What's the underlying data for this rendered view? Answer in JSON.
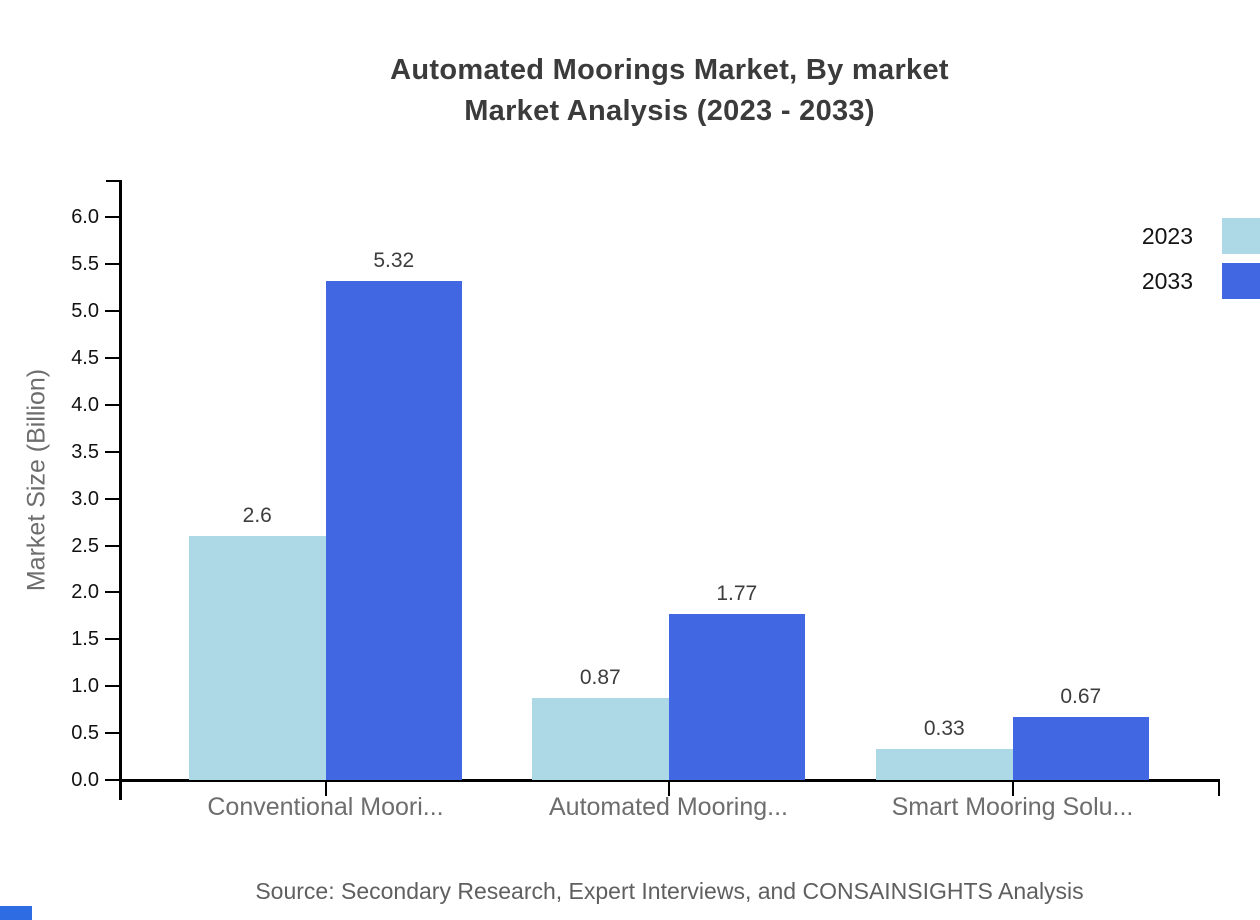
{
  "title": {
    "line1": "Automated Moorings Market, By market",
    "line2": "Market Analysis (2023 - 2033)"
  },
  "source_note": "Source: Secondary Research, Expert Interviews, and CONSAINSIGHTS Analysis",
  "chart_data": {
    "type": "bar",
    "title": "Automated Moorings Market, By market Market Analysis (2023 - 2033)",
    "categories": [
      "Conventional Moori...",
      "Automated Mooring...",
      "Smart Mooring Solu..."
    ],
    "series": [
      {
        "name": "2023",
        "color": "#add8e6",
        "values": [
          2.6,
          0.87,
          0.33
        ],
        "value_labels": [
          "2.6",
          "0.87",
          "0.33"
        ]
      },
      {
        "name": "2033",
        "color": "#4267e2",
        "values": [
          5.32,
          1.77,
          0.67
        ],
        "value_labels": [
          "5.32",
          "1.77",
          "0.67"
        ]
      }
    ],
    "xlabel": "",
    "ylabel": "Market Size (Billion)",
    "ylim": [
      0,
      6.5
    ],
    "ytick_labels": [
      "0.0",
      "0.5",
      "1.0",
      "1.5",
      "2.0",
      "2.5",
      "3.0",
      "3.5",
      "4.0",
      "4.5",
      "5.0",
      "5.5",
      "6.0"
    ],
    "legend_position": "top-right",
    "grid": false
  },
  "branding": {
    "corner_mark_color": "#2e6ce4"
  }
}
